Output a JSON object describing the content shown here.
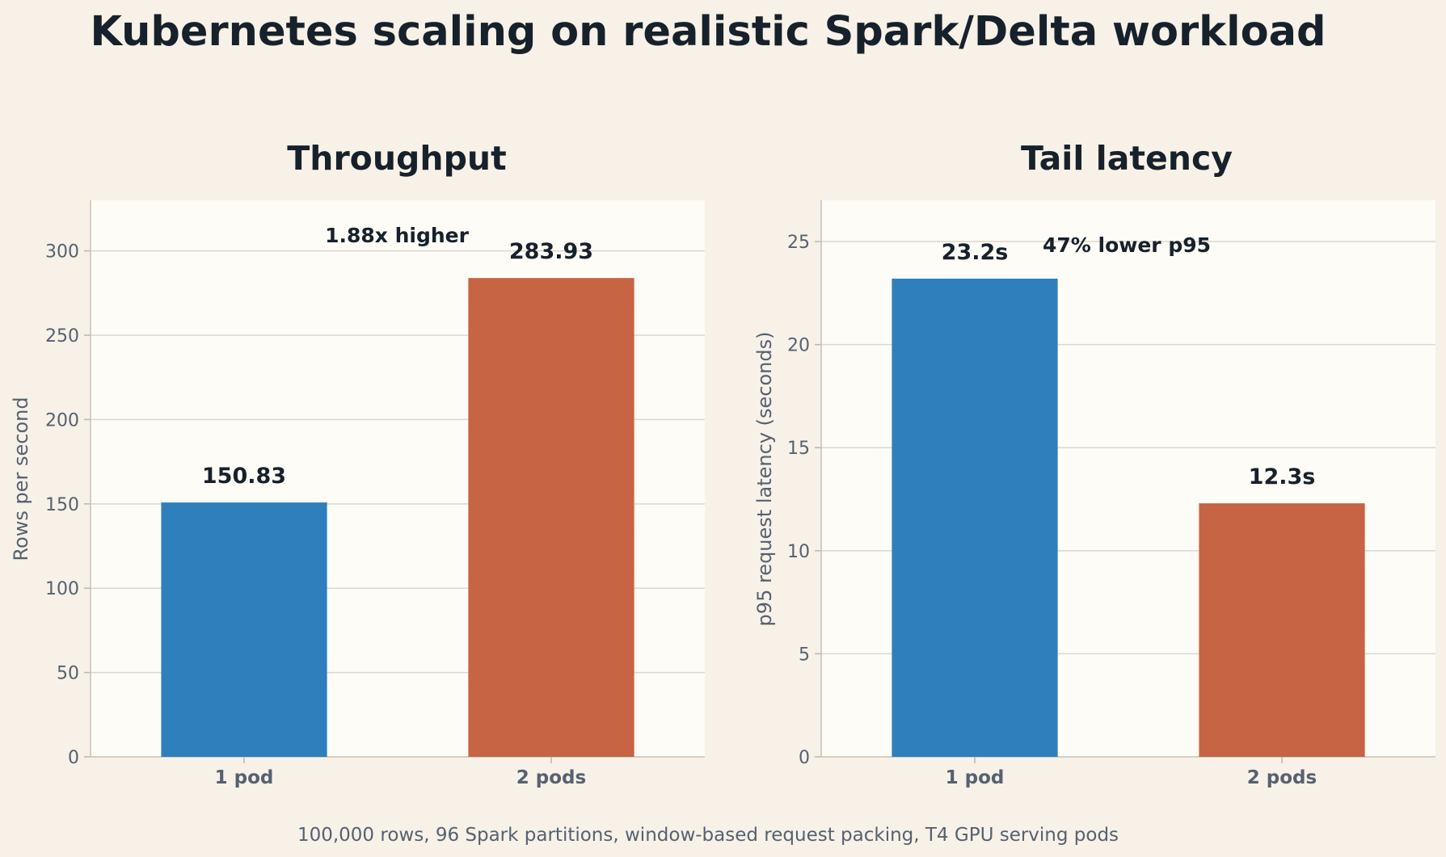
{
  "title": "Kubernetes scaling on realistic Spark/Delta workload",
  "caption": "100,000 rows, 96 Spark partitions, window-based request packing, T4 GPU serving pods",
  "colors": {
    "background": "#f7f1e8",
    "panel": "#fefcf7",
    "grid": "#ddd6cc",
    "bar_1": "#2e7fbb",
    "bar_2": "#c76443"
  },
  "chart_data": [
    {
      "type": "bar",
      "title": "Throughput",
      "categories": [
        "1 pod",
        "2 pods"
      ],
      "values": [
        150.83,
        283.93
      ],
      "value_labels": [
        "150.83",
        "283.93"
      ],
      "xlabel": "",
      "ylabel": "Rows per second",
      "ylim": [
        0,
        330
      ],
      "yticks": [
        0,
        50,
        100,
        150,
        200,
        250,
        300
      ],
      "annotation": "1.88x higher",
      "grid": true
    },
    {
      "type": "bar",
      "title": "Tail latency",
      "categories": [
        "1 pod",
        "2 pods"
      ],
      "values": [
        23.2,
        12.3
      ],
      "value_labels": [
        "23.2s",
        "12.3s"
      ],
      "xlabel": "",
      "ylabel": "p95 request latency (seconds)",
      "ylim": [
        0,
        27
      ],
      "yticks": [
        0,
        5,
        10,
        15,
        20,
        25
      ],
      "annotation": "47% lower p95",
      "grid": true
    }
  ]
}
